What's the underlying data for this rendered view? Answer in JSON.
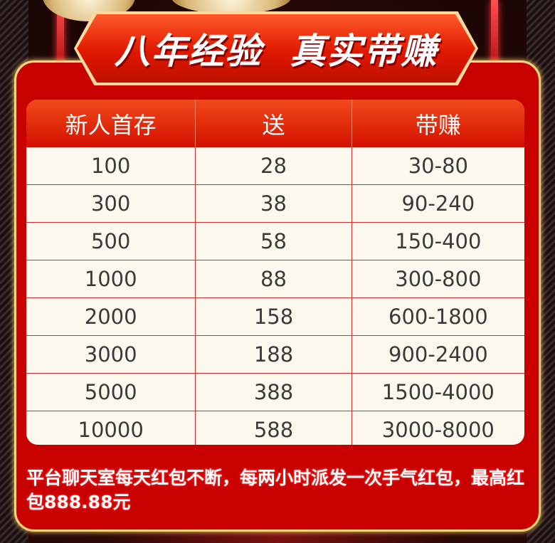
{
  "banner": {
    "title": "八年经验  真实带赚"
  },
  "table": {
    "headers": [
      "新人首存",
      "送",
      "带赚"
    ],
    "rows": [
      [
        "100",
        "28",
        "30-80"
      ],
      [
        "300",
        "38",
        "90-240"
      ],
      [
        "500",
        "58",
        "150-400"
      ],
      [
        "1000",
        "88",
        "300-800"
      ],
      [
        "2000",
        "158",
        "600-1800"
      ],
      [
        "3000",
        "188",
        "900-2400"
      ],
      [
        "5000",
        "388",
        "1500-4000"
      ],
      [
        "10000",
        "588",
        "3000-8000"
      ]
    ]
  },
  "note": "平台聊天室每天红包不断，每两小时派发一次手气红包，最高红包888.88元",
  "colors": {
    "panel": "#c90000",
    "border": "#f7d67a",
    "header": "#e01800",
    "cell": "#fdf8ee"
  }
}
